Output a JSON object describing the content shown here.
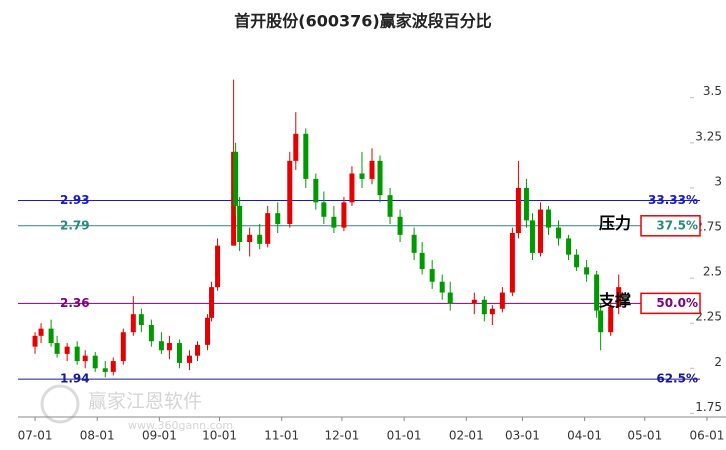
{
  "chart_data": {
    "type": "candlestick",
    "title": "首开股份(600376)赢家波段百分比",
    "watermark": [
      "赢家江恩软件",
      "www.360gann.com"
    ],
    "up_color": "#e60000",
    "down_color": "#009900",
    "xlim": [
      "06-23",
      "06-10"
    ],
    "xticks": [
      "07-01",
      "08-01",
      "09-01",
      "10-01",
      "11-01",
      "12-01",
      "01-01",
      "02-01",
      "03-01",
      "04-01",
      "05-01",
      "06-01"
    ],
    "ylim": [
      1.73,
      3.82
    ],
    "yticks": [
      1.75,
      2,
      2.25,
      2.5,
      2.75,
      3,
      3.25,
      3.5
    ],
    "levels": [
      {
        "value": 2.93,
        "label": "33.33%",
        "color": "#1a1acc"
      },
      {
        "value": 2.79,
        "label": "37.5%",
        "color": "#2a8a80",
        "annotation": "压力",
        "highlight": true
      },
      {
        "value": 2.36,
        "label": "50.0%",
        "color": "#800080",
        "annotation": "支撑",
        "highlight": true
      },
      {
        "value": 1.94,
        "label": "62.5%",
        "color": "#1a1a99"
      }
    ],
    "x": [
      "07-01",
      "07-04",
      "07-09",
      "07-12",
      "07-17",
      "07-22",
      "07-26",
      "07-31",
      "08-05",
      "08-09",
      "08-14",
      "08-19",
      "08-23",
      "08-28",
      "09-02",
      "09-06",
      "09-11",
      "09-16",
      "09-20",
      "09-25",
      "09-27",
      "09-30",
      "10-08",
      "10-09",
      "10-11",
      "10-16",
      "10-21",
      "10-25",
      "10-30",
      "11-05",
      "11-08",
      "11-13",
      "11-18",
      "11-22",
      "11-27",
      "12-02",
      "12-06",
      "12-11",
      "12-16",
      "12-20",
      "12-25",
      "12-30",
      "01-06",
      "01-10",
      "01-15",
      "01-20",
      "01-24",
      "02-05",
      "02-10",
      "02-14",
      "02-19",
      "02-24",
      "02-27",
      "03-03",
      "03-06",
      "03-10",
      "03-14",
      "03-19",
      "03-24",
      "03-28",
      "04-02",
      "04-07",
      "04-09",
      "04-14",
      "04-18"
    ],
    "open": [
      2.12,
      2.18,
      2.22,
      2.14,
      2.08,
      2.12,
      2.04,
      2.07,
      2.0,
      1.98,
      2.04,
      2.2,
      2.3,
      2.24,
      2.15,
      2.1,
      2.14,
      2.03,
      2.07,
      2.13,
      2.28,
      2.45,
      2.68,
      3.2,
      2.9,
      2.7,
      2.74,
      2.69,
      2.86,
      2.8,
      3.15,
      3.3,
      3.05,
      2.92,
      2.84,
      2.78,
      2.92,
      3.08,
      3.05,
      3.15,
      2.96,
      2.84,
      2.74,
      2.64,
      2.55,
      2.48,
      2.42,
      2.36,
      2.38,
      2.3,
      2.33,
      2.42,
      2.75,
      3.0,
      2.82,
      2.64,
      2.88,
      2.78,
      2.72,
      2.63,
      2.56,
      2.52,
      2.32,
      2.2,
      2.34
    ],
    "high": [
      2.2,
      2.25,
      2.27,
      2.18,
      2.14,
      2.15,
      2.1,
      2.09,
      2.04,
      2.06,
      2.22,
      2.4,
      2.33,
      2.27,
      2.2,
      2.18,
      2.16,
      2.1,
      2.15,
      2.3,
      2.48,
      2.72,
      3.6,
      3.25,
      2.95,
      2.78,
      2.8,
      2.9,
      2.92,
      3.2,
      3.42,
      3.33,
      3.08,
      2.98,
      2.9,
      2.95,
      3.12,
      3.2,
      3.22,
      3.18,
      3.0,
      2.88,
      2.78,
      2.7,
      2.6,
      2.52,
      2.48,
      2.42,
      2.4,
      2.35,
      2.45,
      2.78,
      3.15,
      3.05,
      2.86,
      2.92,
      2.9,
      2.82,
      2.74,
      2.66,
      2.6,
      2.54,
      2.36,
      2.38,
      2.52
    ],
    "low": [
      2.08,
      2.14,
      2.12,
      2.06,
      2.04,
      2.02,
      2.0,
      1.98,
      1.95,
      1.96,
      2.02,
      2.18,
      2.2,
      2.12,
      2.08,
      2.05,
      2.0,
      1.99,
      2.04,
      2.1,
      2.26,
      2.43,
      2.68,
      2.85,
      2.65,
      2.62,
      2.66,
      2.67,
      2.75,
      2.78,
      3.1,
      3.0,
      2.88,
      2.8,
      2.75,
      2.76,
      2.9,
      3.0,
      3.02,
      2.92,
      2.8,
      2.7,
      2.6,
      2.52,
      2.44,
      2.38,
      2.32,
      2.3,
      2.26,
      2.24,
      2.31,
      2.4,
      2.72,
      2.78,
      2.6,
      2.62,
      2.74,
      2.68,
      2.6,
      2.54,
      2.48,
      2.28,
      2.1,
      2.18,
      2.3
    ],
    "close": [
      2.18,
      2.22,
      2.14,
      2.08,
      2.12,
      2.04,
      2.07,
      2.0,
      1.98,
      2.04,
      2.2,
      2.3,
      2.24,
      2.15,
      2.1,
      2.14,
      2.03,
      2.07,
      2.13,
      2.28,
      2.45,
      2.68,
      3.2,
      2.9,
      2.7,
      2.74,
      2.69,
      2.86,
      2.8,
      3.15,
      3.3,
      3.05,
      2.92,
      2.84,
      2.78,
      2.92,
      3.08,
      3.05,
      3.15,
      2.96,
      2.84,
      2.74,
      2.64,
      2.55,
      2.48,
      2.42,
      2.36,
      2.38,
      2.3,
      2.33,
      2.42,
      2.75,
      3.0,
      2.82,
      2.64,
      2.88,
      2.78,
      2.72,
      2.63,
      2.56,
      2.52,
      2.32,
      2.2,
      2.34,
      2.45
    ]
  }
}
